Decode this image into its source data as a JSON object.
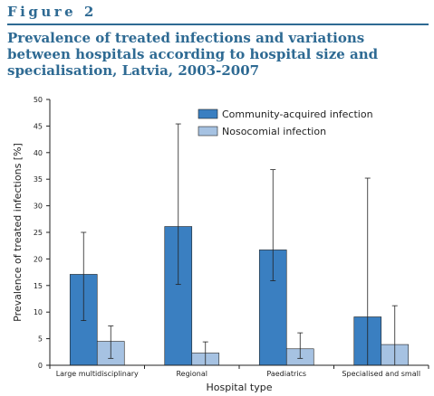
{
  "figure": {
    "label": "Figure 2",
    "title": "Prevalence of treated infections and variations between hospitals according to hospital size and specialisation, Latvia, 2003-2007"
  },
  "colors": {
    "accent": "#2e6a93",
    "community": "#3a7fc1",
    "nosocomial": "#a6c2e2"
  },
  "chart_data": {
    "type": "bar",
    "title": "Prevalence of treated infections and variations between hospitals according to hospital size and specialisation, Latvia, 2003-2007",
    "xlabel": "Hospital type",
    "ylabel": "Prevalence of treated infections [%]",
    "ylim": [
      0,
      50
    ],
    "yticks": [
      0,
      5,
      10,
      15,
      20,
      25,
      30,
      35,
      40,
      45,
      50
    ],
    "categories": [
      "Large multidisciplinary",
      "Regional",
      "Paediatrics",
      "Specialised and small"
    ],
    "legend_position": "top-right",
    "series": [
      {
        "name": "Community-acquired infection",
        "values": [
          17.1,
          26.1,
          21.7,
          9.1
        ],
        "err_low": [
          8.4,
          15.2,
          15.9,
          0
        ],
        "err_high": [
          25.0,
          45.4,
          36.8,
          35.2
        ]
      },
      {
        "name": "Nosocomial infection",
        "values": [
          4.5,
          2.3,
          3.1,
          3.9
        ],
        "err_low": [
          1.3,
          0,
          1.3,
          0
        ],
        "err_high": [
          7.4,
          4.4,
          6.1,
          11.2
        ]
      }
    ]
  }
}
